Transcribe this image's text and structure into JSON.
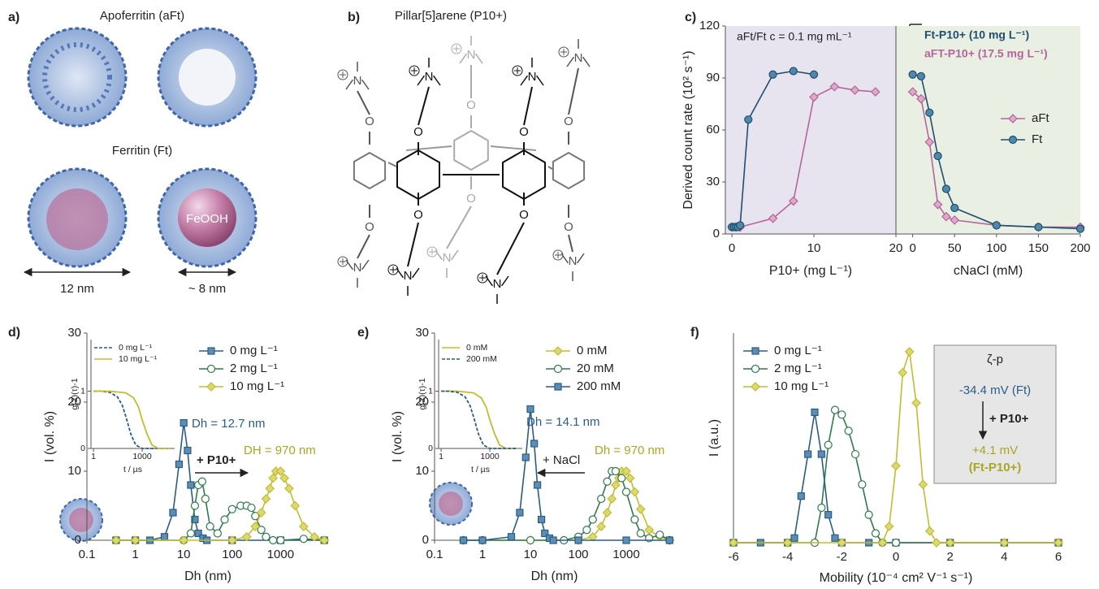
{
  "panel_a": {
    "label": "a)",
    "top_title": "Apoferritin (aFt)",
    "bottom_title": "Ferritin (Ft)",
    "core": "FeOOH",
    "outer_size": "12 nm",
    "core_size": "~ 8 nm"
  },
  "panel_b": {
    "label": "b)",
    "title": "Pillar[5]arene (P10+)",
    "n_label": "N",
    "o_label": "O"
  },
  "chart_data": [
    {
      "type": "line",
      "label": "c)",
      "ylabel": "Derived count rate (10² s⁻¹)",
      "xlabel": "P10+ (mg L⁻¹)",
      "annotations": [
        "aFt/Ft c = 0.1 mg mL⁻¹"
      ],
      "background": "#e7e4ef",
      "xlim": [
        -0.8,
        20
      ],
      "xticks": [
        0,
        10,
        20
      ],
      "ylim": [
        0,
        120
      ],
      "yticks": [
        0,
        30,
        60,
        90,
        120
      ],
      "series": [
        {
          "color": "#b5659a",
          "marker": "diamond",
          "marker_fill": "#dcaacb",
          "x": [
            0,
            0.5,
            1,
            5,
            7.5,
            10,
            12.5,
            15,
            17.5
          ],
          "values": [
            4,
            4,
            4,
            9,
            19,
            79,
            85,
            83,
            82
          ]
        },
        {
          "color": "#1f4e6e",
          "marker": "circle",
          "marker_fill": "#4f88aa",
          "x": [
            0,
            0.25,
            0.5,
            0.75,
            1,
            2,
            5,
            7.5,
            10
          ],
          "values": [
            4,
            4,
            4,
            4,
            5,
            66,
            92,
            94,
            92
          ]
        }
      ]
    },
    {
      "type": "line",
      "xlabel": "cNaCl (mM)",
      "annotations": [
        "Ft-P10+ (10 mg L⁻¹)",
        "aFT-P10+ (17.5 mg L⁻¹)"
      ],
      "background": "#e9efe2",
      "xlim": [
        -20,
        200
      ],
      "xticks": [
        0,
        50,
        100,
        150,
        200
      ],
      "ylim": [
        0,
        120
      ],
      "series": [
        {
          "name": "aFt",
          "color": "#b5659a",
          "marker": "diamond",
          "marker_fill": "#dcaacb",
          "x": [
            0,
            10,
            20,
            30,
            40,
            50,
            100,
            150,
            200
          ],
          "values": [
            82,
            78,
            53,
            17,
            10,
            8,
            5,
            4,
            4
          ]
        },
        {
          "name": "Ft",
          "color": "#1f4e6e",
          "marker": "circle",
          "marker_fill": "#4f88aa",
          "x": [
            0,
            10,
            20,
            30,
            40,
            50,
            100,
            150,
            200
          ],
          "values": [
            92,
            91,
            70,
            45,
            26,
            15,
            5,
            4,
            3
          ]
        }
      ]
    },
    {
      "type": "line",
      "label": "d)",
      "log_x": true,
      "xlabel": "Dh (nm)",
      "ylabel": "I (vol. %)",
      "annotations": [
        "Dh = 12.7 nm",
        "DH = 970 nm",
        "+ P10+"
      ],
      "xlim": [
        0.1,
        10000
      ],
      "xticks": [
        0.1,
        1,
        10,
        100,
        1000
      ],
      "ylim": [
        0,
        30
      ],
      "yticks": [
        0,
        10,
        20,
        30
      ],
      "series": [
        {
          "name": "0 mg L⁻¹",
          "color": "#2a5d86",
          "marker": "square",
          "marker_fill": "#5b8db5",
          "x": [
            0.4,
            1,
            2,
            4,
            6,
            8,
            10,
            12,
            14,
            17,
            20,
            25,
            30,
            100,
            1000,
            8000
          ],
          "values": [
            0,
            0,
            0,
            0.5,
            4,
            11,
            17,
            13,
            8,
            3,
            1,
            0.3,
            0,
            0,
            0,
            0
          ]
        },
        {
          "name": "2 mg L⁻¹",
          "color": "#2f7a4a",
          "marker": "circle",
          "marker_fill": "#ffffff",
          "x": [
            0.4,
            1,
            10,
            14,
            17,
            20,
            24,
            28,
            35,
            50,
            70,
            100,
            150,
            200,
            250,
            300,
            400,
            500,
            700,
            1000,
            3000,
            8000
          ],
          "values": [
            0,
            0,
            0,
            1,
            5,
            8,
            8.5,
            6,
            2,
            1,
            3,
            4.5,
            5,
            5,
            4.7,
            3.5,
            1.5,
            0.5,
            0,
            0,
            0.2,
            0
          ]
        },
        {
          "name": "10 mg L⁻¹",
          "color": "#c2bd2e",
          "marker": "diamond",
          "marker_fill": "#dcd872",
          "x": [
            0.4,
            1,
            10,
            100,
            200,
            300,
            400,
            500,
            600,
            700,
            800,
            1000,
            1200,
            1500,
            2000,
            3000,
            5000,
            8000
          ],
          "values": [
            0,
            0,
            0,
            0,
            0.5,
            2,
            4,
            6,
            7.5,
            9,
            10,
            10,
            9,
            7.5,
            5,
            2,
            0.5,
            0
          ]
        }
      ]
    },
    {
      "type": "line",
      "log_x": true,
      "xlabel": "t / µs",
      "ylabel": "g(2)(τ)-1",
      "xlim": [
        0.7,
        100000
      ],
      "xticks": [
        1,
        1000
      ],
      "ylim": [
        0,
        1.9
      ],
      "yticks": [
        0,
        1
      ],
      "series": [
        {
          "name": "0 mg L⁻¹",
          "color": "#2a5d86",
          "dash": true,
          "x": [
            1,
            3,
            10,
            30,
            60,
            100,
            200,
            400,
            1000,
            10000,
            50000
          ],
          "values": [
            1,
            1,
            0.98,
            0.9,
            0.75,
            0.55,
            0.25,
            0.06,
            0,
            0,
            0
          ]
        },
        {
          "name": "10 mg L⁻¹",
          "color": "#c2bd2e",
          "x": [
            1,
            10,
            100,
            300,
            600,
            1000,
            2000,
            4000,
            10000,
            50000
          ],
          "values": [
            1,
            1,
            0.97,
            0.88,
            0.72,
            0.5,
            0.25,
            0.06,
            0,
            0
          ]
        }
      ]
    },
    {
      "type": "line",
      "label": "e)",
      "log_x": true,
      "xlabel": "Dh (nm)",
      "ylabel": "I (vol. %)",
      "annotations": [
        "Dh = 14.1 nm",
        "Dh = 970 nm",
        "+ NaCl"
      ],
      "xlim": [
        0.1,
        10000
      ],
      "xticks": [
        0.1,
        1,
        10,
        100,
        1000
      ],
      "ylim": [
        0,
        30
      ],
      "yticks": [
        0,
        10,
        20,
        30
      ],
      "series": [
        {
          "name": "0 mM",
          "color": "#c2bd2e",
          "marker": "diamond",
          "marker_fill": "#dcd872",
          "x": [
            0.4,
            1,
            10,
            100,
            200,
            300,
            400,
            500,
            600,
            700,
            800,
            1000,
            1200,
            1500,
            2000,
            3000,
            5000,
            8000
          ],
          "values": [
            0,
            0,
            0,
            0,
            0.5,
            2,
            4,
            6,
            8,
            9,
            10,
            10,
            9,
            7,
            4.5,
            1.5,
            0.5,
            0
          ]
        },
        {
          "name": "20 mM",
          "color": "#2f7a4a",
          "marker": "circle",
          "marker_fill": "#ffffff",
          "x": [
            0.4,
            1,
            10,
            50,
            100,
            150,
            200,
            300,
            400,
            500,
            600,
            800,
            1000,
            1500,
            2000,
            3000,
            5000,
            8000
          ],
          "values": [
            0,
            0,
            0,
            0,
            0.5,
            1.5,
            3,
            6,
            8.5,
            10,
            10,
            9,
            7,
            3,
            1,
            0.3,
            0.8,
            0
          ]
        },
        {
          "name": "200 mM",
          "color": "#2a5d86",
          "marker": "square",
          "marker_fill": "#5b8db5",
          "x": [
            0.4,
            1,
            4,
            6,
            8,
            10,
            12,
            14,
            17,
            20,
            25,
            30,
            100,
            1000,
            8000
          ],
          "values": [
            0,
            0,
            0.5,
            4,
            12,
            19,
            14,
            8,
            3,
            1,
            0.3,
            0,
            0,
            0,
            0
          ]
        }
      ]
    },
    {
      "type": "line",
      "log_x": true,
      "xlabel": "t / µs",
      "ylabel": "g(2)(τ)-1",
      "xlim": [
        0.7,
        100000
      ],
      "xticks": [
        1,
        1000
      ],
      "ylim": [
        0,
        1.9
      ],
      "yticks": [
        0,
        1
      ],
      "series": [
        {
          "name": "0 mM",
          "color": "#c2bd2e",
          "x": [
            1,
            10,
            100,
            300,
            600,
            1000,
            2000,
            4000,
            10000,
            50000
          ],
          "values": [
            1,
            1,
            0.97,
            0.88,
            0.72,
            0.5,
            0.25,
            0.06,
            0,
            0
          ]
        },
        {
          "name": "200 mM",
          "color": "#2a5d86",
          "dash": true,
          "x": [
            1,
            3,
            10,
            30,
            60,
            100,
            200,
            400,
            1000,
            10000,
            50000
          ],
          "values": [
            1,
            1,
            0.98,
            0.9,
            0.75,
            0.55,
            0.25,
            0.06,
            0,
            0,
            0
          ]
        }
      ]
    },
    {
      "type": "line",
      "label": "f)",
      "xlabel": "Mobility (10⁻⁴ cm² V⁻¹ s⁻¹)",
      "ylabel": "I (a.u.)",
      "annotations": [
        "ζ-p",
        "-34.4 mV (Ft)",
        "+ P10+",
        "+4.1 mV",
        "(Ft-P10+)"
      ],
      "xlim": [
        -6,
        6
      ],
      "xticks": [
        -6,
        -4,
        -2,
        0,
        2,
        4,
        6
      ],
      "ylim": [
        0,
        0.9
      ],
      "series": [
        {
          "name": "0 mg L⁻¹",
          "color": "#2a5d86",
          "marker": "square",
          "marker_fill": "#5b8db5",
          "x": [
            -6,
            -5,
            -4,
            -3.75,
            -3.5,
            -3.25,
            -3,
            -2.75,
            -2.5,
            -2.25,
            -2,
            -1,
            0,
            2,
            4,
            6
          ],
          "values": [
            0,
            0,
            0,
            0.02,
            0.2,
            0.38,
            0.56,
            0.38,
            0.12,
            0.02,
            0,
            0,
            0,
            0,
            0,
            0
          ]
        },
        {
          "name": "2 mg L⁻¹",
          "color": "#2f7a4a",
          "marker": "circle",
          "marker_fill": "#ffffff",
          "x": [
            -6,
            -4,
            -3,
            -2.75,
            -2.5,
            -2.25,
            -2,
            -1.75,
            -1.5,
            -1.25,
            -1,
            -0.75,
            -0.5,
            0,
            2,
            6
          ],
          "values": [
            0,
            0,
            0,
            0.15,
            0.42,
            0.57,
            0.55,
            0.48,
            0.38,
            0.25,
            0.12,
            0.04,
            0,
            0,
            0,
            0
          ]
        },
        {
          "name": "10 mg L⁻¹",
          "color": "#c2bd2e",
          "marker": "diamond",
          "marker_fill": "#dcd872",
          "x": [
            -6,
            -4,
            -2,
            -0.5,
            -0.25,
            0,
            0.25,
            0.5,
            0.75,
            1,
            1.25,
            1.5,
            2,
            4,
            6
          ],
          "values": [
            0,
            0,
            0,
            0,
            0.07,
            0.33,
            0.73,
            0.82,
            0.6,
            0.25,
            0.05,
            0,
            0,
            0,
            0
          ]
        }
      ]
    }
  ]
}
